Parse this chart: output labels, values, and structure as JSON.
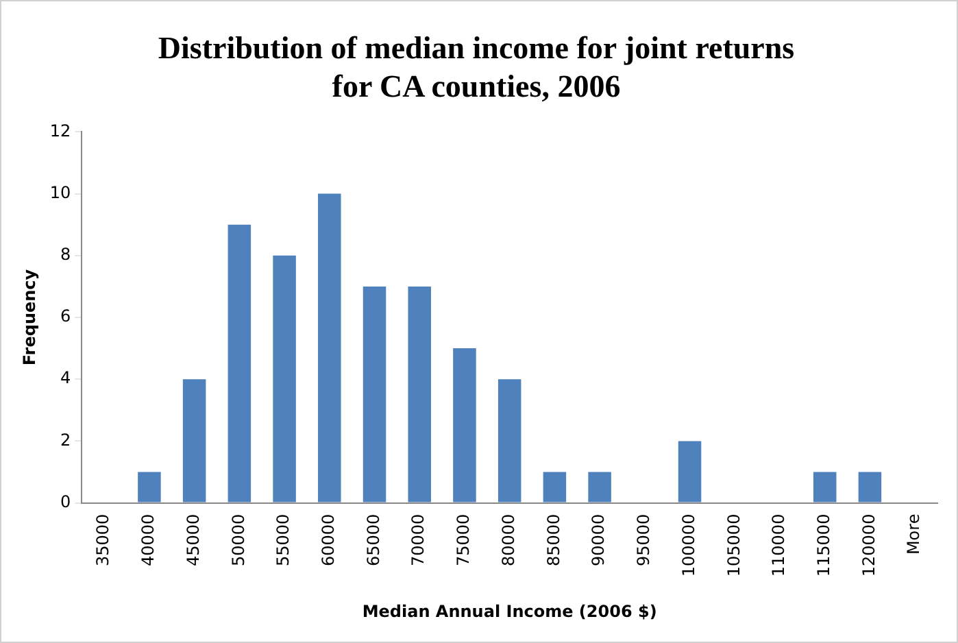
{
  "chart_data": {
    "type": "bar",
    "title": "Distribution of median income for joint returns for CA counties, 2006",
    "xlabel": "Median Annual Income (2006 $)",
    "ylabel": "Frequency",
    "categories": [
      "35000",
      "40000",
      "45000",
      "50000",
      "55000",
      "60000",
      "65000",
      "70000",
      "75000",
      "80000",
      "85000",
      "90000",
      "95000",
      "100000",
      "105000",
      "110000",
      "115000",
      "120000",
      "More"
    ],
    "values": [
      0,
      1,
      4,
      9,
      8,
      10,
      7,
      7,
      5,
      4,
      1,
      1,
      0,
      2,
      0,
      0,
      1,
      1,
      0
    ],
    "color": "#4f81bd",
    "ylim": [
      0,
      12
    ],
    "yticks": [
      0,
      2,
      4,
      6,
      8,
      10,
      12
    ],
    "grid": false,
    "legend": false
  }
}
